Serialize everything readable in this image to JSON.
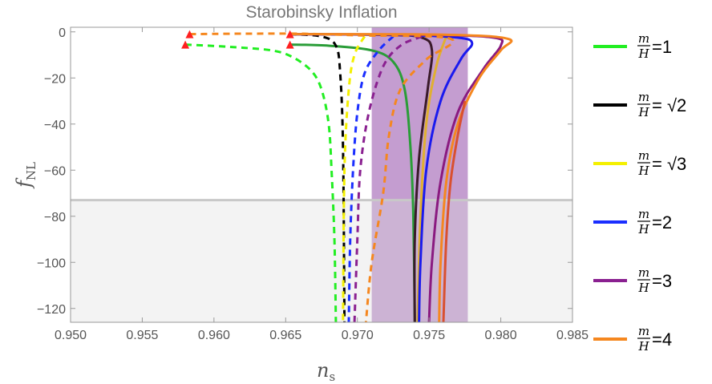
{
  "chart_data": {
    "type": "line",
    "title": "Starobinsky Inflation",
    "xlabel": "n",
    "xlabel_sub": "s",
    "ylabel": "f",
    "ylabel_sub": "NL",
    "xlim": [
      0.95,
      0.985
    ],
    "ylim": [
      -126,
      2
    ],
    "x_ticks": [
      0.95,
      0.955,
      0.96,
      0.965,
      0.97,
      0.975,
      0.98,
      0.985
    ],
    "x_tick_labels": [
      "0.950",
      "0.955",
      "0.960",
      "0.965",
      "0.970",
      "0.975",
      "0.980",
      "0.985"
    ],
    "y_ticks": [
      0,
      -20,
      -40,
      -60,
      -80,
      -100,
      -120
    ],
    "y_tick_labels": [
      "0",
      "−20",
      "−40",
      "−60",
      "−80",
      "−100",
      "−120"
    ],
    "bands": [
      {
        "name": "ns-observed-band",
        "axis": "x",
        "from": 0.971,
        "to": 0.9777,
        "color": "#b07cc0",
        "opacity": 0.75
      },
      {
        "name": "fnl-excluded-region",
        "axis": "y",
        "from": -126,
        "to": -73,
        "color": "#dddddd",
        "opacity": 0.35
      },
      {
        "name": "fnl-bound-line",
        "axis": "y",
        "value": -73,
        "color": "#c8c8c8"
      }
    ],
    "markers": [
      {
        "x": 0.958,
        "y": -5.5,
        "color": "#ff2020"
      },
      {
        "x": 0.9583,
        "y": -1,
        "color": "#ff2020"
      },
      {
        "x": 0.9653,
        "y": -5.5,
        "color": "#ff2020"
      },
      {
        "x": 0.9653,
        "y": -1,
        "color": "#ff2020"
      }
    ],
    "series": [
      {
        "name": "green-dashed",
        "color": "#22ee22",
        "style": "dashed",
        "points": [
          [
            0.958,
            -5.5
          ],
          [
            0.961,
            -6.5
          ],
          [
            0.964,
            -8
          ],
          [
            0.9655,
            -11
          ],
          [
            0.9668,
            -17
          ],
          [
            0.9675,
            -25
          ],
          [
            0.968,
            -40
          ],
          [
            0.9682,
            -60
          ],
          [
            0.9684,
            -90
          ],
          [
            0.9685,
            -126
          ]
        ]
      },
      {
        "name": "green-solid",
        "color": "#2a9d38",
        "style": "solid",
        "points": [
          [
            0.9653,
            -5.5
          ],
          [
            0.968,
            -6
          ],
          [
            0.971,
            -8
          ],
          [
            0.9725,
            -13
          ],
          [
            0.9733,
            -25
          ],
          [
            0.9737,
            -50
          ],
          [
            0.9739,
            -80
          ],
          [
            0.974,
            -126
          ]
        ]
      },
      {
        "name": "black-dashed",
        "color": "#000000",
        "style": "dashed",
        "points": [
          [
            0.9653,
            -1
          ],
          [
            0.9675,
            -2
          ],
          [
            0.9685,
            -6
          ],
          [
            0.9688,
            -18
          ],
          [
            0.969,
            -50
          ],
          [
            0.9691,
            -126
          ]
        ]
      },
      {
        "name": "black-solid",
        "color": "#3a1a2a",
        "style": "solid",
        "points": [
          [
            0.9653,
            -1
          ],
          [
            0.972,
            -1.3
          ],
          [
            0.9745,
            -2.5
          ],
          [
            0.9752,
            -8
          ],
          [
            0.9749,
            -25
          ],
          [
            0.9743,
            -55
          ],
          [
            0.974,
            -90
          ],
          [
            0.974,
            -126
          ]
        ]
      },
      {
        "name": "yellow-dashed",
        "color": "#f4f000",
        "style": "dashed",
        "points": [
          [
            0.9705,
            -2
          ],
          [
            0.9698,
            -10
          ],
          [
            0.9694,
            -25
          ],
          [
            0.9691,
            -60
          ],
          [
            0.969,
            -126
          ]
        ]
      },
      {
        "name": "yellow-solid",
        "color": "#e0b030",
        "style": "solid",
        "points": [
          [
            0.9762,
            -2
          ],
          [
            0.9755,
            -15
          ],
          [
            0.9748,
            -40
          ],
          [
            0.9744,
            -80
          ],
          [
            0.9742,
            -126
          ]
        ]
      },
      {
        "name": "blue-dashed",
        "color": "#1a2eff",
        "style": "dashed",
        "points": [
          [
            0.9725,
            -2
          ],
          [
            0.9715,
            -8
          ],
          [
            0.9705,
            -18
          ],
          [
            0.97,
            -35
          ],
          [
            0.9697,
            -60
          ],
          [
            0.9695,
            -90
          ],
          [
            0.9694,
            -126
          ]
        ]
      },
      {
        "name": "blue-solid",
        "color": "#1a1aee",
        "style": "solid",
        "points": [
          [
            0.9653,
            -1
          ],
          [
            0.973,
            -1.3
          ],
          [
            0.977,
            -2.5
          ],
          [
            0.978,
            -5
          ],
          [
            0.9772,
            -12
          ],
          [
            0.9758,
            -30
          ],
          [
            0.9748,
            -60
          ],
          [
            0.9744,
            -100
          ],
          [
            0.9743,
            -126
          ]
        ]
      },
      {
        "name": "purple-dashed",
        "color": "#8a2090",
        "style": "dashed",
        "points": [
          [
            0.9745,
            -2
          ],
          [
            0.973,
            -6
          ],
          [
            0.9718,
            -15
          ],
          [
            0.9708,
            -35
          ],
          [
            0.9702,
            -60
          ],
          [
            0.97,
            -90
          ],
          [
            0.9698,
            -126
          ]
        ]
      },
      {
        "name": "purple-solid",
        "color": "#8a1a80",
        "style": "solid",
        "points": [
          [
            0.9653,
            -1
          ],
          [
            0.975,
            -1.3
          ],
          [
            0.9795,
            -2.5
          ],
          [
            0.98,
            -6
          ],
          [
            0.9788,
            -16
          ],
          [
            0.977,
            -35
          ],
          [
            0.9758,
            -65
          ],
          [
            0.9752,
            -100
          ],
          [
            0.975,
            -126
          ]
        ]
      },
      {
        "name": "orange-dashed",
        "color": "#f5871f",
        "style": "dashed",
        "points": [
          [
            0.9583,
            -1
          ],
          [
            0.962,
            -0.8
          ],
          [
            0.966,
            -0.8
          ],
          [
            0.97,
            -1.5
          ],
          [
            0.9765,
            -3
          ],
          [
            0.9748,
            -12
          ],
          [
            0.973,
            -25
          ],
          [
            0.9722,
            -45
          ],
          [
            0.9718,
            -70
          ],
          [
            0.971,
            -100
          ],
          [
            0.9706,
            -126
          ]
        ]
      },
      {
        "name": "orange-solid",
        "color": "#f5871f",
        "style": "solid",
        "points": [
          [
            0.9653,
            -1
          ],
          [
            0.976,
            -1.2
          ],
          [
            0.9805,
            -3
          ],
          [
            0.98,
            -8
          ],
          [
            0.9785,
            -20
          ],
          [
            0.977,
            -40
          ],
          [
            0.9762,
            -65
          ],
          [
            0.9758,
            -100
          ],
          [
            0.9757,
            -126
          ]
        ]
      },
      {
        "name": "red-solid",
        "color": "#d95030",
        "style": "solid",
        "points": [
          [
            0.9775,
            -30
          ],
          [
            0.977,
            -45
          ],
          [
            0.9765,
            -65
          ],
          [
            0.9762,
            -90
          ],
          [
            0.976,
            -126
          ]
        ]
      }
    ],
    "legend": [
      {
        "color": "#22ee22",
        "num": "m",
        "den": "H",
        "value": "=1"
      },
      {
        "color": "#000000",
        "num": "m",
        "den": "H",
        "value": "= √2"
      },
      {
        "color": "#f4f000",
        "num": "m",
        "den": "H",
        "value": "= √3"
      },
      {
        "color": "#1a2eff",
        "num": "m",
        "den": "H",
        "value": "=2"
      },
      {
        "color": "#8a2090",
        "num": "m",
        "den": "H",
        "value": "=3"
      },
      {
        "color": "#f5871f",
        "num": "m",
        "den": "H",
        "value": "=4"
      }
    ]
  }
}
